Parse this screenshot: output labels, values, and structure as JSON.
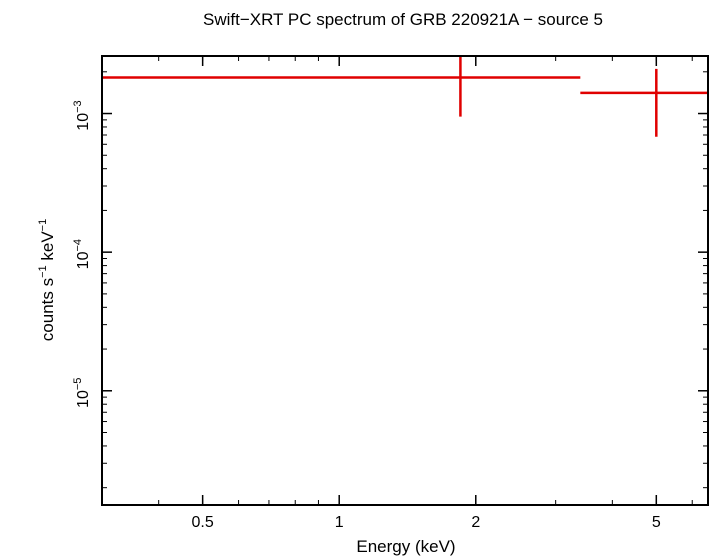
{
  "chart_data": {
    "type": "scatter",
    "title": "Swift−XRT PC spectrum of GRB 220921A − source 5",
    "xlabel": "Energy (keV)",
    "ylabel": {
      "base": "counts s",
      "exp1": "−1",
      "mid": " keV",
      "exp2": "−1"
    },
    "x_scale": "log",
    "y_scale": "log",
    "xlim": [
      0.3,
      6.5
    ],
    "ylim": [
      1.5e-06,
      0.0026
    ],
    "x_ticks": [
      {
        "value": 0.5,
        "label": "0.5"
      },
      {
        "value": 1,
        "label": "1"
      },
      {
        "value": 2,
        "label": "2"
      },
      {
        "value": 5,
        "label": "5"
      }
    ],
    "y_ticks": [
      {
        "value": 0.001,
        "base": "10",
        "exp": "−3"
      },
      {
        "value": 0.0001,
        "base": "10",
        "exp": "−4"
      },
      {
        "value": 1e-05,
        "base": "10",
        "exp": "−5"
      }
    ],
    "series": [
      {
        "color": "#e00000",
        "points": [
          {
            "x": 1.85,
            "x_low": 0.3,
            "x_high": 3.4,
            "y": 0.00182,
            "y_low": 0.00095,
            "y_high": 0.0026
          },
          {
            "x": 5.0,
            "x_low": 3.4,
            "x_high": 6.5,
            "y": 0.00141,
            "y_low": 0.00068,
            "y_high": 0.0021
          }
        ]
      }
    ]
  }
}
